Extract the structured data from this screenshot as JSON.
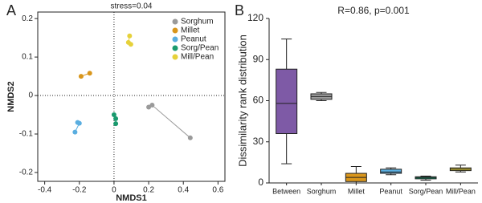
{
  "chart_data": [
    {
      "type": "scatter",
      "panel": "A",
      "annotation": "stress=0.04",
      "xlabel": "NMDS1",
      "ylabel": "NMDS2",
      "xlim": [
        -0.44,
        0.64
      ],
      "ylim": [
        -0.223,
        0.217
      ],
      "xticks": [
        -0.4,
        -0.2,
        0,
        0.2,
        0.4,
        0.6
      ],
      "yticks": [
        -0.2,
        -0.1,
        0,
        0.1,
        0.2
      ],
      "legend": "top-right",
      "series": [
        {
          "name": "Sorghum",
          "color": "#9a9a9a",
          "x": [
            0.2,
            0.22,
            0.44
          ],
          "y": [
            -0.03,
            -0.025,
            -0.11
          ]
        },
        {
          "name": "Millet",
          "color": "#d9961c",
          "x": [
            -0.19,
            -0.14
          ],
          "y": [
            0.05,
            0.058
          ]
        },
        {
          "name": "Peanut",
          "color": "#5aaee0",
          "x": [
            -0.21,
            -0.2,
            -0.225
          ],
          "y": [
            -0.07,
            -0.072,
            -0.095
          ]
        },
        {
          "name": "Sorg/Pean",
          "color": "#1a9a6e",
          "x": [
            0,
            0.01,
            0.01
          ],
          "y": [
            -0.05,
            -0.06,
            -0.073
          ]
        },
        {
          "name": "Mill/Pean",
          "color": "#e6d13a",
          "x": [
            0.09,
            0.083,
            0.097
          ],
          "y": [
            0.155,
            0.138,
            0.133
          ]
        }
      ]
    },
    {
      "type": "box",
      "panel": "B",
      "annotation": "R=0.86, p=0.001",
      "ylabel": "Dissimilarity rank distribution",
      "ylim": [
        0,
        120
      ],
      "yticks": [
        0,
        30,
        60,
        90,
        120
      ],
      "categories": [
        "Between",
        "Sorghum",
        "Millet",
        "Peanut",
        "Sorg/Pean",
        "Mill/Pean"
      ],
      "colors": [
        "#7e5aa6",
        "#9a9a9a",
        "#d9961c",
        "#5aaee0",
        "#1a9a6e",
        "#e6d13a"
      ],
      "min": [
        14,
        60,
        0,
        6,
        2,
        8
      ],
      "q1": [
        36,
        61,
        1,
        7,
        3,
        9
      ],
      "median": [
        58,
        63,
        4,
        8,
        4,
        10
      ],
      "q3": [
        83,
        65,
        7,
        10,
        4.5,
        11
      ],
      "max": [
        105,
        66,
        12,
        11,
        5,
        13
      ]
    }
  ]
}
